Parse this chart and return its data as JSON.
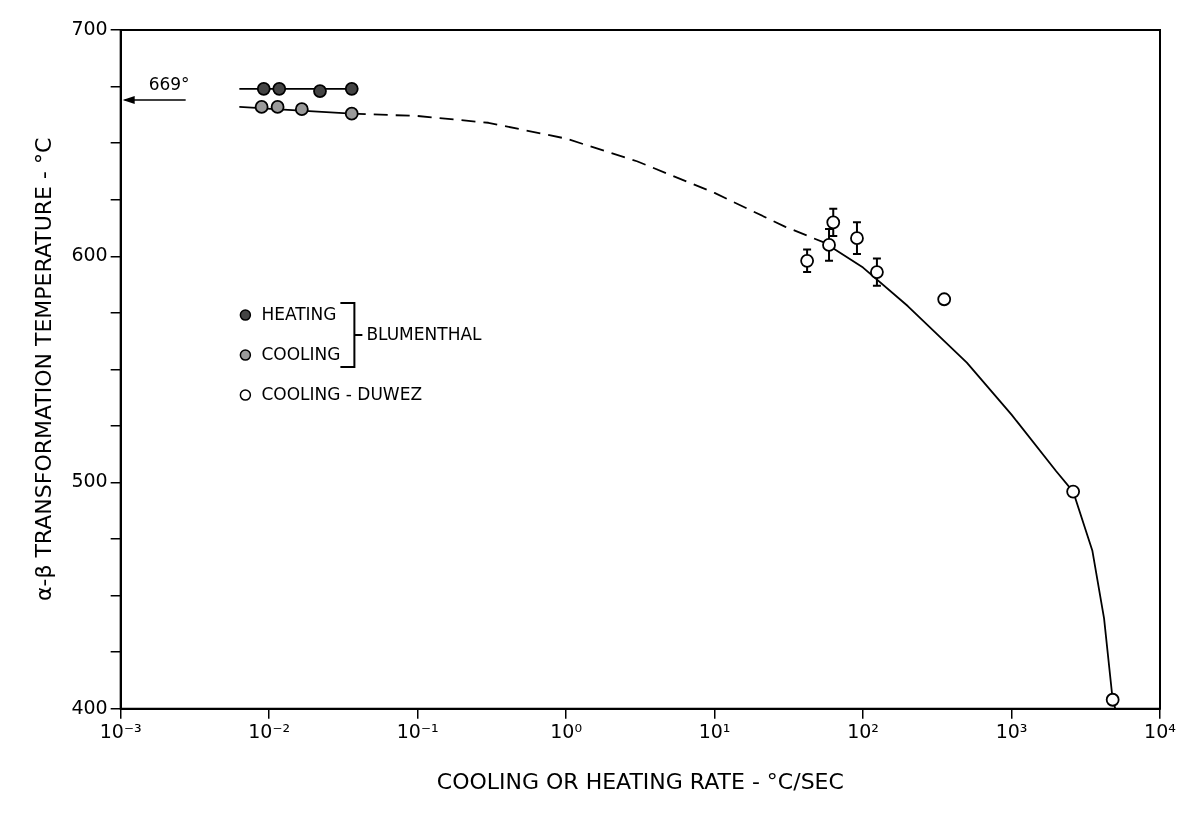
{
  "chart_data": {
    "type": "scatter",
    "xlabel": "COOLING OR HEATING RATE - °C/SEC",
    "ylabel": "α-β TRANSFORMATION TEMPERATURE - °C",
    "log": "x",
    "xlim": [
      0.001,
      10000
    ],
    "xticks": [
      {
        "value": 0.001,
        "label": "10⁻³"
      },
      {
        "value": 0.01,
        "label": "10⁻²"
      },
      {
        "value": 0.1,
        "label": "10⁻¹"
      },
      {
        "value": 1,
        "label": "10⁰"
      },
      {
        "value": 10,
        "label": "10¹"
      },
      {
        "value": 100,
        "label": "10²"
      },
      {
        "value": 1000,
        "label": "10³"
      },
      {
        "value": 10000,
        "label": "10⁴"
      }
    ],
    "ylim": [
      400,
      700
    ],
    "yticks": [
      400,
      {
        "value": 425,
        "label": null
      },
      {
        "value": 450,
        "label": null
      },
      {
        "value": 475,
        "label": null
      },
      500,
      {
        "value": 525,
        "label": null
      },
      {
        "value": 550,
        "label": null
      },
      {
        "value": 575,
        "label": null
      },
      600,
      {
        "value": 625,
        "label": null
      },
      {
        "value": 650,
        "label": null
      },
      {
        "value": 675,
        "label": null
      },
      700
    ],
    "grid": false,
    "legend": "left",
    "marker": "circle",
    "series": [
      {
        "type": "line",
        "marker": "none",
        "color": "#000000",
        "x": [
          0.0063,
          0.036
        ],
        "values": [
          674,
          674
        ]
      },
      {
        "type": "line",
        "marker": "none",
        "color": "#000000",
        "x": [
          0.0063,
          0.036
        ],
        "values": [
          666,
          663
        ]
      },
      {
        "type": "line",
        "marker": "none",
        "line_style": "dashed",
        "color": "#000000",
        "x": [
          0.036,
          0.1,
          0.3,
          1,
          3,
          10,
          30,
          55
        ],
        "values": [
          663,
          662,
          659,
          652,
          642,
          628,
          613,
          606
        ]
      },
      {
        "type": "line",
        "marker": "none",
        "color": "#000000",
        "x": [
          55,
          100,
          200,
          500,
          1000,
          2000,
          2600,
          3500,
          4200,
          4800,
          5000
        ],
        "values": [
          606,
          595,
          578,
          553,
          530,
          505,
          496,
          470,
          440,
          404,
          400
        ]
      },
      {
        "name": "HEATING",
        "color": "#444444",
        "x": [
          0.0092,
          0.0117,
          0.022,
          0.036
        ],
        "values": [
          674,
          674,
          673,
          674
        ]
      },
      {
        "name": "COOLING",
        "color": "#9a9a9a",
        "x": [
          0.0089,
          0.0114,
          0.0166,
          0.036
        ],
        "values": [
          666,
          666,
          665,
          663
        ]
      },
      {
        "name": "COOLING - DUWEZ",
        "color": "#ffffff",
        "x": [
          42,
          59,
          63,
          91,
          124,
          352,
          2600,
          4800
        ],
        "values": [
          598,
          605,
          615,
          608,
          593,
          581,
          496,
          404
        ],
        "errors": [
          5,
          7,
          6,
          7,
          6,
          null,
          null,
          null
        ]
      }
    ],
    "annotations": [
      "669°",
      "BLUMENTHAL"
    ]
  }
}
